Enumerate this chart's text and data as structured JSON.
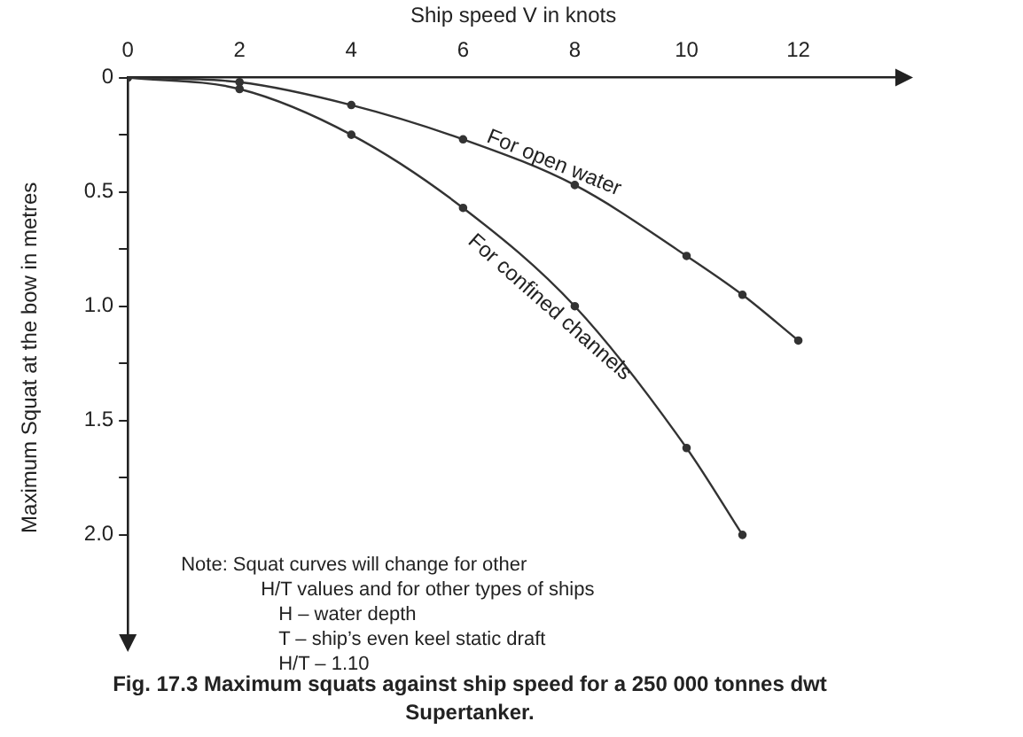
{
  "chart_data": {
    "type": "line",
    "title": "Fig. 17.3    Maximum squats against ship speed for a 250 000 tonnes dwt Supertanker.",
    "xlabel": "Ship speed V in knots",
    "ylabel": "Maximum Squat at the bow in metres",
    "series": [
      {
        "name": "For open water",
        "color": "#333333",
        "x": [
          0,
          2,
          4,
          6,
          8,
          10,
          11,
          12
        ],
        "values": [
          0,
          0.02,
          0.12,
          0.27,
          0.47,
          0.78,
          0.95,
          1.15
        ]
      },
      {
        "name": "For confined channels",
        "color": "#333333",
        "x": [
          0,
          2,
          4,
          6,
          8,
          10,
          11
        ],
        "values": [
          0,
          0.05,
          0.25,
          0.57,
          1.0,
          1.62,
          2.0
        ]
      }
    ],
    "xlim": [
      0,
      13.8
    ],
    "xticks": [
      0,
      2,
      4,
      6,
      8,
      10,
      12
    ],
    "ylim": [
      2.45,
      0
    ],
    "yticks": [
      0,
      {
        "value": 0.25,
        "label": null
      },
      0.5,
      {
        "value": 0.75,
        "label": null
      },
      {
        "value": 1,
        "label": "1.0"
      },
      {
        "value": 1.25,
        "label": null
      },
      1.5,
      {
        "value": 1.75,
        "label": null
      },
      {
        "value": 2,
        "label": "2.0"
      }
    ],
    "annotations": [
      "Note: Squat curves will change for other H/T values and for other types of ships",
      "H – water depth",
      "T – ship’s even keel static draft",
      "H/T – 1.10"
    ],
    "legend": false,
    "grid": false,
    "marker": "circle",
    "line_style": "solid"
  }
}
